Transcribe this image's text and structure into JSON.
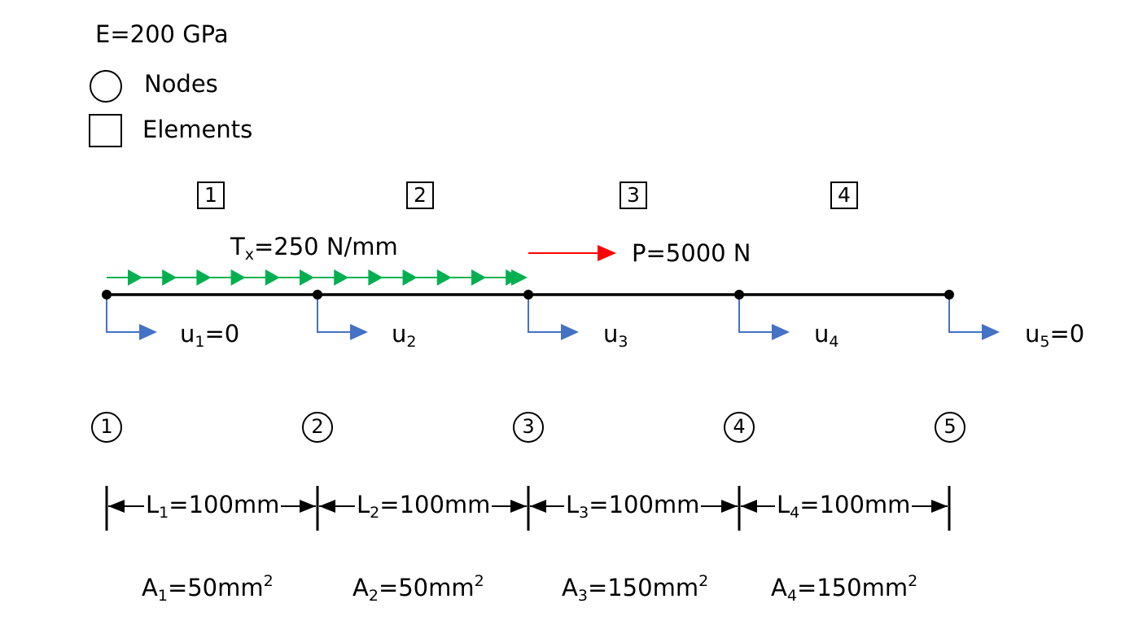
{
  "modulus": "E=200 GPa",
  "legend": {
    "nodes_label": "Nodes",
    "elements_label": "Elements"
  },
  "elements": [
    {
      "number": "1",
      "length": {
        "sym": "L",
        "sub": "1",
        "rest": "=100mm"
      },
      "area": {
        "sym": "A",
        "sub": "1",
        "mid": "=50mm",
        "sup": "2"
      }
    },
    {
      "number": "2",
      "length": {
        "sym": "L",
        "sub": "2",
        "rest": "=100mm"
      },
      "area": {
        "sym": "A",
        "sub": "2",
        "mid": "=50mm",
        "sup": "2"
      }
    },
    {
      "number": "3",
      "length": {
        "sym": "L",
        "sub": "3",
        "rest": "=100mm"
      },
      "area": {
        "sym": "A",
        "sub": "3",
        "mid": "=150mm",
        "sup": "2"
      }
    },
    {
      "number": "4",
      "length": {
        "sym": "L",
        "sub": "4",
        "rest": "=100mm"
      },
      "area": {
        "sym": "A",
        "sub": "4",
        "mid": "=150mm",
        "sup": "2"
      }
    }
  ],
  "nodes": [
    {
      "number": "1",
      "disp": {
        "sym": "u",
        "sub": "1",
        "rest": "=0"
      }
    },
    {
      "number": "2",
      "disp": {
        "sym": "u",
        "sub": "2",
        "rest": ""
      }
    },
    {
      "number": "3",
      "disp": {
        "sym": "u",
        "sub": "3",
        "rest": ""
      }
    },
    {
      "number": "4",
      "disp": {
        "sym": "u",
        "sub": "4",
        "rest": ""
      }
    },
    {
      "number": "5",
      "disp": {
        "sym": "u",
        "sub": "5",
        "rest": "=0"
      }
    }
  ],
  "traction": {
    "sym": "T",
    "sub": "x",
    "rest": "=250 N/mm"
  },
  "point_load": "P=5000 N",
  "colors": {
    "bar": "#000000",
    "traction": "#00b050",
    "point_load": "#ff0000",
    "displacement": "#4472c4"
  }
}
